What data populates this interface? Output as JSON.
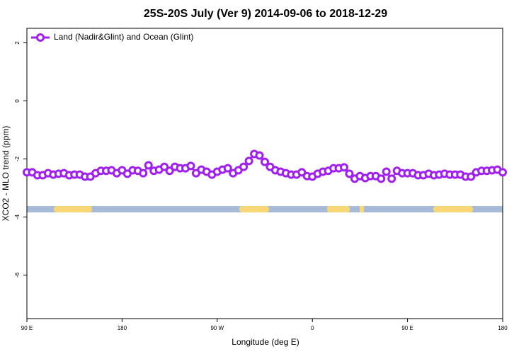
{
  "chart_data": {
    "type": "line",
    "title": "25S-20S July (Ver 9)   2014-09-06 to 2018-12-29",
    "x_label": "Longitude (deg E)",
    "y_label": "XCO2 - MLO trend (ppm)",
    "xlim": [
      90,
      540
    ],
    "ylim": [
      -7.5,
      2.5
    ],
    "xticks": [
      {
        "value": 90,
        "label": "90 E"
      },
      180,
      {
        "value": 270,
        "label": "90 W"
      },
      {
        "value": 360,
        "label": "0"
      },
      {
        "value": 450,
        "label": "90 E"
      },
      {
        "value": 540,
        "label": "180"
      }
    ],
    "yticks": [
      2,
      0,
      -2,
      -4,
      -6
    ],
    "legend": "top-left",
    "x": [
      90,
      95,
      100,
      105,
      110,
      115,
      120,
      125,
      130,
      135,
      140,
      145,
      150,
      155,
      160,
      165,
      170,
      175,
      180,
      185,
      190,
      195,
      200,
      205,
      210,
      215,
      220,
      225,
      230,
      235,
      240,
      245,
      250,
      255,
      260,
      265,
      270,
      275,
      280,
      285,
      290,
      295,
      300,
      305,
      310,
      315,
      320,
      325,
      330,
      335,
      340,
      345,
      350,
      355,
      360,
      365,
      370,
      375,
      380,
      385,
      390,
      395,
      400,
      405,
      410,
      415,
      420,
      425,
      430,
      435,
      440,
      445,
      450,
      455,
      460,
      465,
      470,
      475,
      480,
      485,
      490,
      495,
      500,
      505,
      510,
      515,
      520,
      525,
      530,
      535,
      540
    ],
    "series": [
      {
        "name": "Land (Nadir&Glint) and Ocean (Glint)",
        "color": "#a020f0",
        "values": [
          -2.46,
          -2.46,
          -2.56,
          -2.56,
          -2.49,
          -2.54,
          -2.51,
          -2.49,
          -2.56,
          -2.54,
          -2.54,
          -2.61,
          -2.61,
          -2.49,
          -2.41,
          -2.41,
          -2.39,
          -2.49,
          -2.39,
          -2.51,
          -2.39,
          -2.41,
          -2.49,
          -2.22,
          -2.41,
          -2.37,
          -2.27,
          -2.41,
          -2.27,
          -2.32,
          -2.32,
          -2.24,
          -2.49,
          -2.37,
          -2.44,
          -2.54,
          -2.44,
          -2.37,
          -2.32,
          -2.49,
          -2.39,
          -2.27,
          -2.07,
          -1.83,
          -1.88,
          -2.1,
          -2.27,
          -2.39,
          -2.44,
          -2.49,
          -2.54,
          -2.54,
          -2.46,
          -2.59,
          -2.61,
          -2.51,
          -2.44,
          -2.41,
          -2.32,
          -2.32,
          -2.29,
          -2.51,
          -2.68,
          -2.59,
          -2.66,
          -2.59,
          -2.59,
          -2.68,
          -2.44,
          -2.68,
          -2.41,
          -2.49,
          -2.49,
          -2.49,
          -2.56,
          -2.56,
          -2.51,
          -2.56,
          -2.54,
          -2.51,
          -2.54,
          -2.54,
          -2.54,
          -2.61,
          -2.61,
          -2.46,
          -2.41,
          -2.41,
          -2.39,
          -2.37,
          -2.46
        ]
      }
    ]
  }
}
